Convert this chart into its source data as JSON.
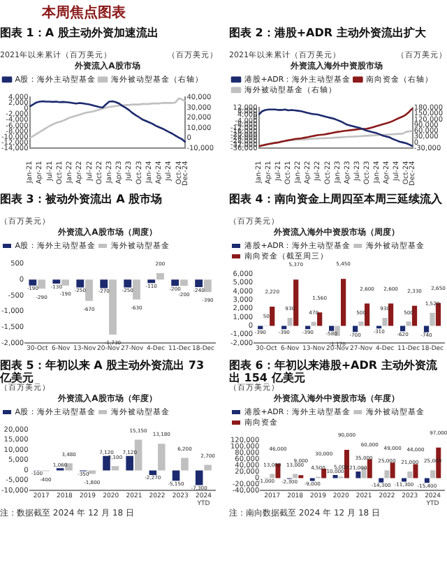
{
  "chart_data": [
    {
      "type": "line",
      "title": "图表 1：A 股主动外资加速流出",
      "subtitle": "外资流入A股市场",
      "ylabel": "2021年以来累计（百万美元）",
      "y2label": "（百万美元）",
      "annotations": [
        "本周焦点图表"
      ],
      "legend": "top",
      "marker": "none",
      "categories": [
        "Jan-21",
        null,
        null,
        "Apr-21",
        null,
        null,
        "Jul-21",
        null,
        null,
        "Oct-21",
        null,
        null,
        "Jan-22",
        null,
        null,
        "Apr-22",
        null,
        null,
        "Jul-22",
        null,
        null,
        "Oct-22",
        null,
        null,
        "Jan-23",
        null,
        null,
        "Apr-23",
        null,
        null,
        "Jul-23",
        null,
        null,
        "Oct-23",
        null,
        null,
        "Jan-24",
        null,
        null,
        "Apr-24",
        null,
        null,
        "Jul-24",
        null,
        null,
        "Oct-24",
        null,
        "Dec-24"
      ],
      "ylim": [
        -14000,
        4000
      ],
      "yticks": [
        {
          "value": -14000,
          "label": "-14,000"
        },
        {
          "value": -12000,
          "label": "-12,000"
        },
        {
          "value": -10000,
          "label": "-10,000"
        },
        {
          "value": -8000,
          "label": "-8,000"
        },
        {
          "value": -6000,
          "label": "-6,000"
        },
        {
          "value": -4000,
          "label": "-4,000"
        },
        {
          "value": -2000,
          "label": "-2,000"
        },
        0,
        {
          "value": 2000,
          "label": "2,000"
        },
        {
          "value": 4000,
          "label": "4,000"
        }
      ],
      "y2lim": [
        -10000,
        40000
      ],
      "y2ticks": [
        {
          "value": -10000,
          "label": "-10,000"
        },
        0,
        {
          "value": 10000,
          "label": "10,000"
        },
        {
          "value": 20000,
          "label": "20,000"
        },
        {
          "value": 30000,
          "label": "30,000"
        },
        {
          "value": 40000,
          "label": "40,000"
        }
      ],
      "series": [
        {
          "name": "A股：海外主动型基金",
          "color": "#1c2a6e",
          "values": [
            800,
            1500,
            2200,
            2500,
            2600,
            2500,
            2500,
            2400,
            2500,
            2300,
            2400,
            2300,
            2200,
            2000,
            1800,
            2000,
            1900,
            1700,
            1500,
            1200,
            900,
            600,
            400,
            1500,
            2500,
            2600,
            2300,
            1800,
            1000,
            300,
            -500,
            -1500,
            -2300,
            -3000,
            -3800,
            -4300,
            -4800,
            -5300,
            -6000,
            -6500,
            -7000,
            -7600,
            -8200,
            -8800,
            -9500,
            -10200,
            -10800,
            -11800
          ]
        },
        {
          "name": "海外被动型基金（右轴）",
          "color": "#c0c0c0",
          "axis": "y2",
          "values": [
            200,
            2000,
            4000,
            6000,
            8000,
            10000,
            12000,
            13500,
            15000,
            16000,
            17000,
            18500,
            20000,
            21000,
            22000,
            23000,
            24000,
            25000,
            25500,
            26000,
            27000,
            28000,
            29000,
            30000,
            30500,
            31000,
            31500,
            32000,
            32000,
            32500,
            32500,
            33000,
            33000,
            33000,
            33500,
            33500,
            33500,
            34000,
            34000,
            34000,
            34500,
            34500,
            34500,
            34500,
            35000,
            39000,
            38000,
            36000
          ]
        }
      ]
    },
    {
      "type": "line",
      "title": "图表 2：港股+ADR 主动外资流出扩大",
      "subtitle": "外资流入海外中资股市场",
      "ylabel": "2021年以来累计（百万美元）",
      "y2label": "（百万美元）",
      "legend": "top",
      "marker": "none",
      "categories": [
        "Jan-21",
        null,
        null,
        "Apr-21",
        null,
        null,
        "Jul-21",
        null,
        null,
        "Oct-21",
        null,
        null,
        "Jan-22",
        null,
        null,
        "Apr-22",
        null,
        null,
        "Jul-22",
        null,
        null,
        "Oct-22",
        null,
        null,
        "Jan-23",
        null,
        null,
        "Apr-23",
        null,
        null,
        "Jul-23",
        null,
        null,
        "Oct-23",
        null,
        null,
        "Jan-24",
        null,
        null,
        "Apr-24",
        null,
        null,
        "Jul-24",
        null,
        null,
        "Oct-24",
        null,
        "Dec-24"
      ],
      "ylim": [
        -36000,
        12000
      ],
      "yticks": [
        {
          "value": -36000,
          "label": "-36,000"
        },
        {
          "value": -32000,
          "label": "-32,000"
        },
        {
          "value": -28000,
          "label": "-28,000"
        },
        {
          "value": -24000,
          "label": "-24,000"
        },
        {
          "value": -20000,
          "label": "-20,000"
        },
        {
          "value": -16000,
          "label": "-16,000"
        },
        {
          "value": -12000,
          "label": "-12,000"
        },
        {
          "value": -8000,
          "label": "-8,000"
        },
        {
          "value": -4000,
          "label": "-4,000"
        },
        0,
        {
          "value": 4000,
          "label": "4,000"
        },
        {
          "value": 8000,
          "label": "8,000"
        },
        {
          "value": 12000,
          "label": "12,000"
        }
      ],
      "y2lim": [
        -30000,
        180000
      ],
      "y2ticks": [
        {
          "value": -30000,
          "label": "-30,000"
        },
        0,
        {
          "value": 30000,
          "label": "30,000"
        },
        {
          "value": 60000,
          "label": "60,000"
        },
        {
          "value": 90000,
          "label": "90,000"
        },
        {
          "value": 120000,
          "label": "120,000"
        },
        {
          "value": 150000,
          "label": "150,000"
        },
        {
          "value": 180000,
          "label": "180,000"
        }
      ],
      "series": [
        {
          "name": "港股+ADR：海外主动型基金",
          "color": "#1c2a6e",
          "values": [
            4000,
            8000,
            9500,
            10000,
            10000,
            10000,
            9500,
            9500,
            10000,
            9000,
            9500,
            9000,
            8500,
            8000,
            7000,
            6000,
            5000,
            4500,
            4000,
            3000,
            2000,
            1000,
            0,
            -1000,
            -2500,
            -4000,
            -6000,
            -8000,
            -9000,
            -10000,
            -11000,
            -12000,
            -13500,
            -15000,
            -16000,
            -17000,
            -18000,
            -19500,
            -21000,
            -22000,
            -23000,
            -25000,
            -26500,
            -28000,
            -29000,
            -30000,
            -31500,
            -33500
          ]
        },
        {
          "name": "南向资金（右轴）",
          "color": "#8b1a1a",
          "axis": "y2",
          "values": [
            -20000,
            -15000,
            -12000,
            -8000,
            -5000,
            -2000,
            0,
            5000,
            8000,
            12000,
            15000,
            18000,
            20000,
            22000,
            25000,
            28000,
            32000,
            35000,
            38000,
            40000,
            42000,
            45000,
            48000,
            52000,
            55000,
            57000,
            60000,
            62000,
            64000,
            66000,
            68000,
            70000,
            71000,
            72000,
            75000,
            80000,
            85000,
            90000,
            95000,
            100000,
            105000,
            112000,
            120000,
            128000,
            135000,
            145000,
            160000,
            178000
          ]
        },
        {
          "name": "海外被动型基金（右轴）",
          "color": "#c0c0c0",
          "axis": "y2",
          "values": [
            -20000,
            -15000,
            -10000,
            -6000,
            -3000,
            0,
            3000,
            5000,
            8000,
            10000,
            12000,
            14000,
            15000,
            16000,
            17000,
            18000,
            19000,
            20000,
            21000,
            22000,
            22500,
            23000,
            24000,
            25000,
            26000,
            27000,
            28000,
            29000,
            30000,
            31000,
            32000,
            33000,
            34000,
            35000,
            36000,
            37000,
            38000,
            39000,
            40000,
            41000,
            42000,
            43000,
            44000,
            45000,
            46000,
            55000,
            58000,
            60000
          ]
        }
      ]
    },
    {
      "type": "bar",
      "title": "图表 3：被动外资流出 A 股市场",
      "subtitle": "外资流入A股市场（周度）",
      "ylabel": "（百万美元）",
      "legend": "top",
      "categories": [
        "30-Oct",
        "6-Nov",
        "13-Nov",
        "20-Nov",
        "27-Nov",
        "4-Dec",
        "11-Dec",
        "18-Dec"
      ],
      "ylim": [
        -2000,
        500
      ],
      "yticks": [
        {
          "value": -2000,
          "label": "-2,000"
        },
        {
          "value": -1500,
          "label": "-1,500"
        },
        {
          "value": -1000,
          "label": "-1,000"
        },
        -500,
        0,
        500
      ],
      "series": [
        {
          "name": "A股：海外主动型基金",
          "color": "#1c2a6e",
          "values": [
            -190,
            -130,
            -250,
            -270,
            -250,
            -110,
            -200,
            -240
          ],
          "value_labels": [
            "-190",
            "-130",
            "-250",
            "-270",
            "-250",
            "-110",
            "-200",
            "-240"
          ]
        },
        {
          "name": "海外被动型基金",
          "color": "#c0c0c0",
          "values": [
            -290,
            -190,
            -670,
            -1730,
            -630,
            200,
            -200,
            -390
          ],
          "value_labels": [
            "-290",
            "-190",
            "-670",
            "-1,730",
            "-630",
            "200",
            "-200",
            "-390"
          ]
        }
      ]
    },
    {
      "type": "bar",
      "title": "图表 4：南向资金上周四至本周三延续流入",
      "subtitle": "外资流入海外中资股市场（周度）",
      "ylabel": "（百万美元）",
      "legend": "top",
      "categories": [
        "30-Oct",
        "6-Nov",
        "13-Nov",
        "20-Nov",
        "27-Nov",
        "4-Dec",
        "11-Dec",
        "18-Dec"
      ],
      "ylim": [
        -2000,
        6000
      ],
      "yticks": [
        {
          "value": -2000,
          "label": "-2,000"
        },
        {
          "value": -1000,
          "label": "-1,000"
        },
        0,
        {
          "value": 1000,
          "label": "1,000"
        },
        {
          "value": 2000,
          "label": "2,000"
        },
        {
          "value": 3000,
          "label": "3,000"
        },
        {
          "value": 4000,
          "label": "4,000"
        },
        {
          "value": 5000,
          "label": "5,000"
        },
        {
          "value": 6000,
          "label": "6,000"
        }
      ],
      "series": [
        {
          "name": "港股+ADR：海外主动型基金",
          "color": "#1c2a6e",
          "values": [
            -390,
            -390,
            -390,
            -580,
            -700,
            -310,
            -620,
            -740
          ],
          "value_labels": [
            "-390",
            "-390",
            "-390",
            "-580",
            "-700",
            "-310",
            "-620",
            "-740"
          ]
        },
        {
          "name": "海外被动型基金",
          "color": "#c0c0c0",
          "values": [
            50,
            930,
            470,
            -1170,
            500,
            930,
            500,
            1520
          ],
          "value_labels": [
            "50",
            "930",
            "470",
            "-1,170",
            "500",
            "930",
            "500",
            "1,520"
          ]
        },
        {
          "name": "南向资金（截至周三）",
          "color": "#8b1a1a",
          "values": [
            2220,
            5370,
            1560,
            5450,
            2600,
            2600,
            2330,
            2650
          ],
          "value_labels": [
            "2,220",
            "5,370",
            "1,560",
            "5,450",
            "2,600",
            "2,600",
            "2,330",
            "2,650"
          ]
        }
      ]
    },
    {
      "type": "bar",
      "title": "图表 5：年初以来 A 股主动外资流出 73 亿美元",
      "subtitle": "外资流入A股市场（年度）",
      "ylabel": "（百万美元）",
      "legend": "top",
      "annotations": [
        "注：数据截至 2024 年 12 月 18 日"
      ],
      "categories": [
        "2017",
        "2018",
        "2019",
        "2020",
        "2021",
        "2022",
        "2023",
        "2024 YTD"
      ],
      "ylim": [
        -10000,
        20000
      ],
      "yticks": [
        {
          "value": -10000,
          "label": "-10,000"
        },
        {
          "value": -5000,
          "label": "-5,000"
        },
        0,
        {
          "value": 5000,
          "label": "5,000"
        },
        {
          "value": 10000,
          "label": "10,000"
        },
        {
          "value": 15000,
          "label": "15,000"
        },
        {
          "value": 20000,
          "label": "20,000"
        }
      ],
      "series": [
        {
          "name": "A股：海外主动型基金",
          "color": "#1c2a6e",
          "values": [
            -100,
            1060,
            -350,
            7120,
            7120,
            -2270,
            -5150,
            -7300
          ],
          "value_labels": [
            "-100",
            "1,060",
            "-350",
            "7,120",
            "7,120",
            "-2,270",
            "-5,150",
            "-7,300"
          ]
        },
        {
          "name": "海外被动型基金",
          "color": "#c0c0c0",
          "values": [
            -400,
            3480,
            -1800,
            2100,
            15150,
            13180,
            6200,
            2700
          ],
          "value_labels": [
            "-400",
            "3,480",
            "-1,800",
            "2,100",
            "15,150",
            "13,180",
            "6,200",
            "2,700"
          ]
        }
      ]
    },
    {
      "type": "bar",
      "title": "图表 6：年初以来港股+ADR 主动外资流出 154 亿美元",
      "subtitle": "外资流入海外中资股市场（年度）",
      "ylabel": "（百万美元）",
      "legend": "top",
      "annotations": [
        "注：南向数据截至 2024 年 12 月 18 日"
      ],
      "categories": [
        "2017",
        "2018",
        "2019",
        "2020",
        "2021",
        "2022",
        "2023",
        "2024 YTD"
      ],
      "ylim": [
        -40000,
        120000
      ],
      "yticks": [
        {
          "value": -40000,
          "label": "-40,000"
        },
        {
          "value": -20000,
          "label": "-20,000"
        },
        0,
        {
          "value": 20000,
          "label": "20,000"
        },
        {
          "value": 40000,
          "label": "40,000"
        },
        {
          "value": 60000,
          "label": "60,000"
        },
        {
          "value": 80000,
          "label": "80,000"
        },
        {
          "value": 100000,
          "label": "100,000"
        },
        {
          "value": 120000,
          "label": "120,000"
        }
      ],
      "series": [
        {
          "name": "港股+ADR：海外主动型基金",
          "color": "#1c2a6e",
          "values": [
            -1000,
            -2300,
            -9000,
            10000,
            21000,
            -14300,
            -11300,
            -15400
          ],
          "value_labels": [
            "-1,000",
            "-2,300",
            "-9,000",
            "10,000",
            "21,000",
            "-14,300",
            "-11,300",
            "-15,400"
          ]
        },
        {
          "name": "海外被动型基金",
          "color": "#c0c0c0",
          "values": [
            13000,
            13000,
            4500,
            5000,
            35000,
            25000,
            21000,
            25000
          ],
          "value_labels": [
            "13,000",
            "13,000",
            "4,500",
            "5,000",
            "35,000",
            "25,000",
            "21,000",
            "25,000"
          ]
        },
        {
          "name": "南向资金",
          "color": "#8b1a1a",
          "values": [
            46000,
            9000,
            30000,
            90000,
            60000,
            49000,
            44000,
            97000
          ],
          "value_labels": [
            "46,000",
            "9,000",
            "30,000",
            "90,000",
            "60,000",
            "49,000",
            "44,000",
            "97,000"
          ]
        }
      ]
    }
  ]
}
